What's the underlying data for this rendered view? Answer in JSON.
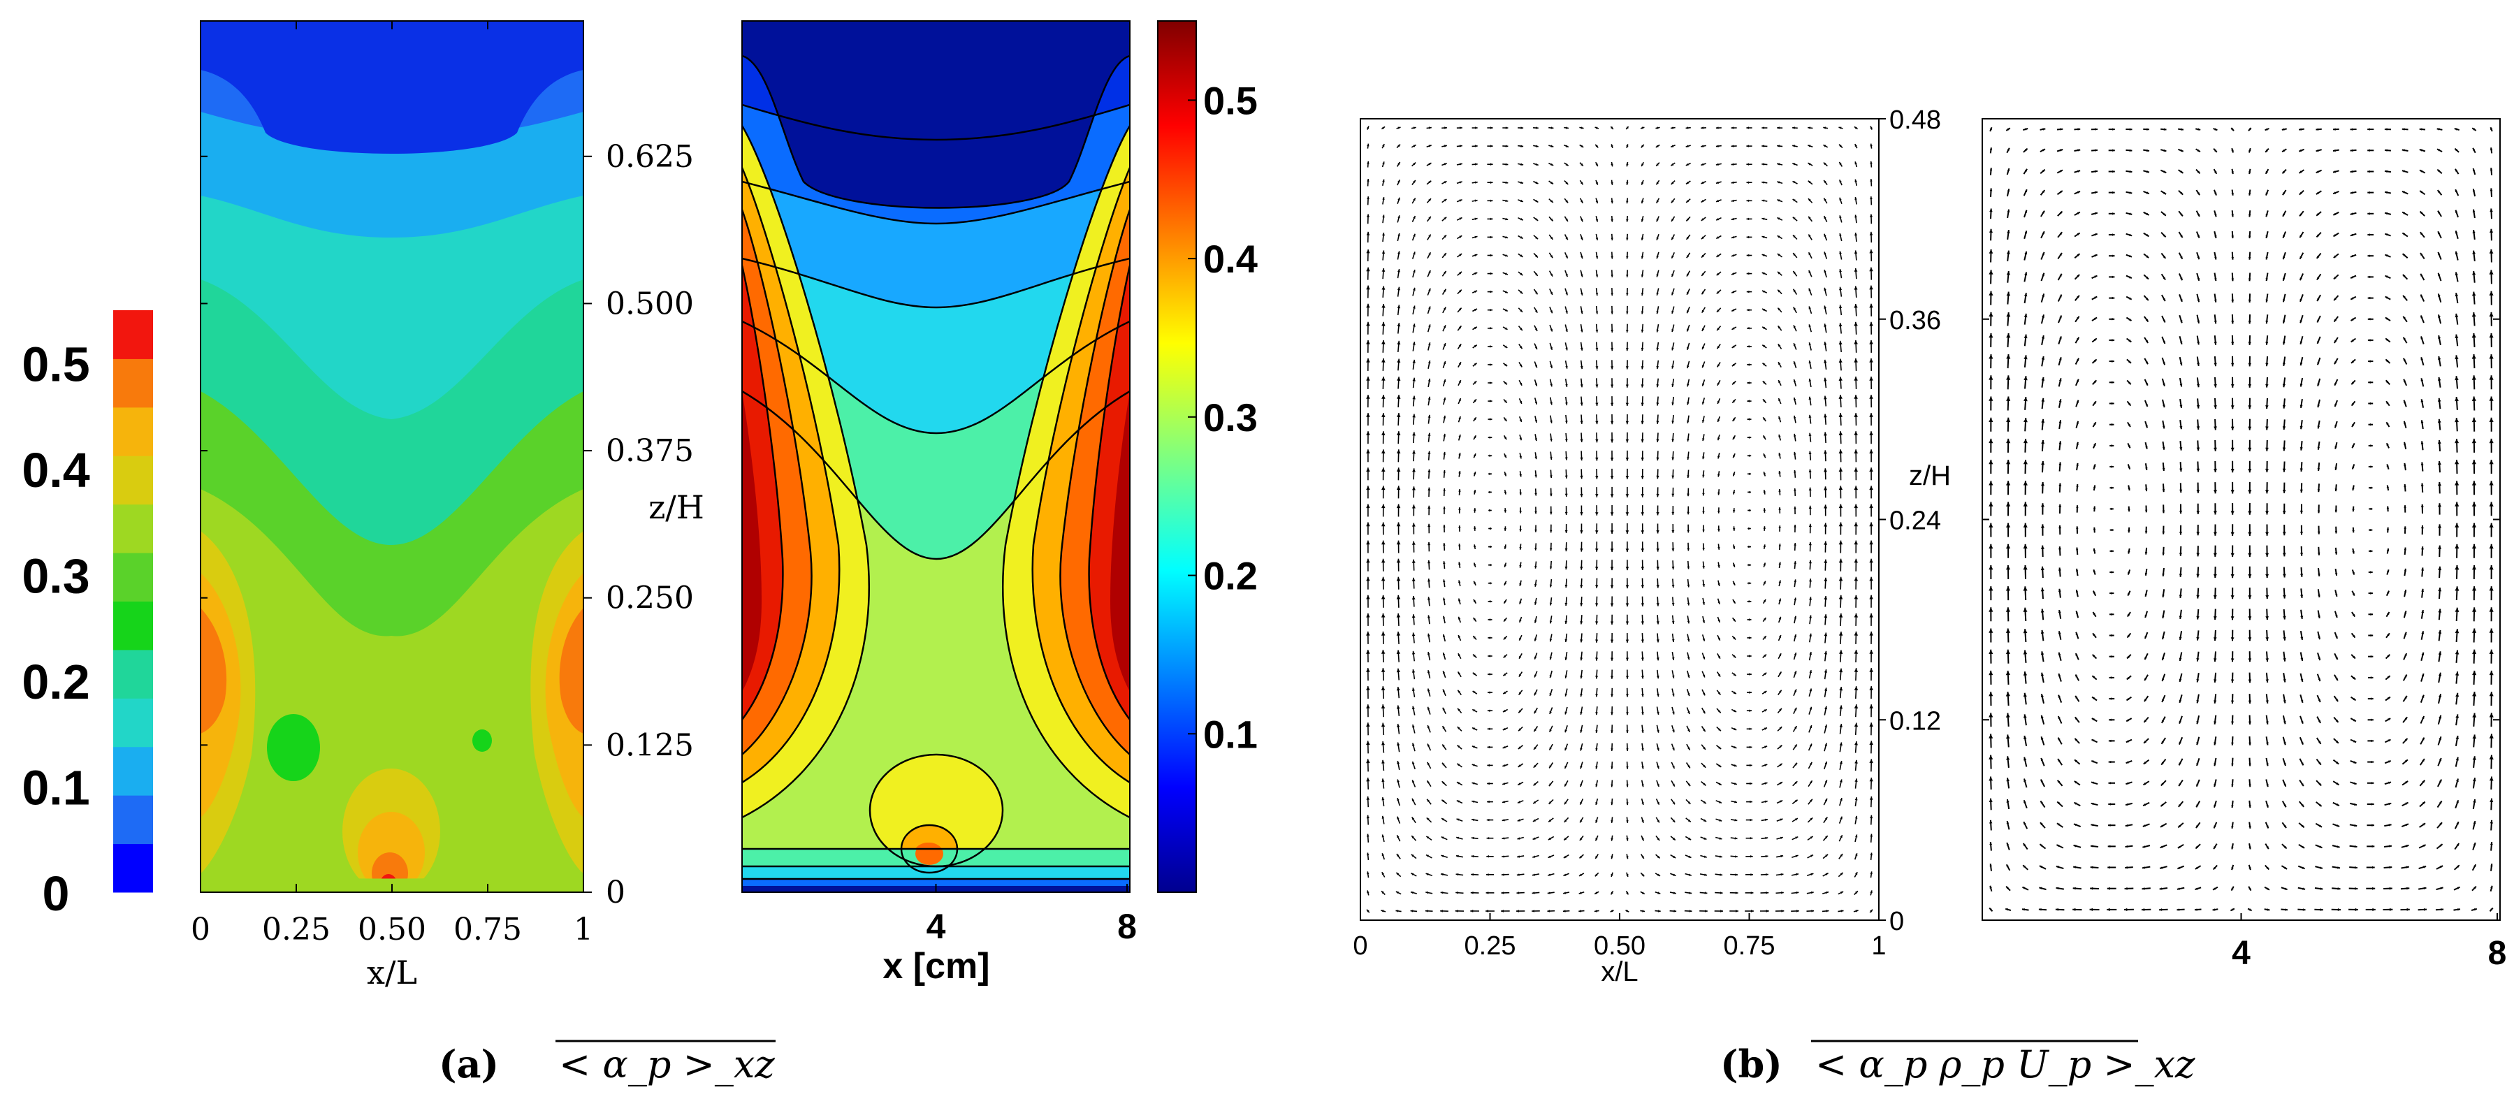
{
  "chart_data": [
    {
      "id": "a-left",
      "type": "heatmap",
      "title": "",
      "xlabel": "x/L",
      "ylabel": "z/H",
      "x_ticks": [
        "0",
        "0.25",
        "0.50",
        "0.75",
        "1"
      ],
      "x_values": [
        0,
        0.25,
        0.5,
        0.75,
        1
      ],
      "y_ticks": [
        "0",
        "0.125",
        "0.250",
        "0.375",
        "0.500",
        "0.625"
      ],
      "y_values": [
        0,
        0.125,
        0.25,
        0.375,
        0.5,
        0.625
      ],
      "xlim": [
        0,
        1
      ],
      "ylim": [
        0,
        0.74
      ],
      "colorbar": {
        "position": "left",
        "ticks": [
          "0",
          "0.1",
          "0.2",
          "0.3",
          "0.4",
          "0.5"
        ],
        "range": [
          0,
          0.55
        ],
        "levels": [
          0,
          0.05,
          0.1,
          0.15,
          0.2,
          0.25,
          0.3,
          0.35,
          0.4,
          0.45,
          0.5,
          0.55
        ],
        "colors": [
          "#0000ff",
          "#1e6bf5",
          "#1aaef0",
          "#22d6c8",
          "#20d69a",
          "#16d41a",
          "#5ad22a",
          "#9ed822",
          "#d9cc10",
          "#f6b40c",
          "#f87a0c",
          "#f2160e"
        ]
      },
      "description_value_range": [
        0,
        0.55
      ]
    },
    {
      "id": "a-right",
      "type": "heatmap",
      "xlabel": "x [cm]",
      "x_ticks": [
        "4",
        "8"
      ],
      "x_values": [
        4,
        8
      ],
      "xlim": [
        0,
        8
      ],
      "colorbar": {
        "position": "right",
        "ticks": [
          "0.1",
          "0.2",
          "0.3",
          "0.4",
          "0.5"
        ],
        "range": [
          0,
          0.55
        ]
      }
    },
    {
      "id": "b-left",
      "type": "vector-field",
      "xlabel": "x/L",
      "ylabel": "z/H",
      "x_ticks": [
        "0",
        "0.25",
        "0.50",
        "0.75",
        "1"
      ],
      "x_values": [
        0,
        0.25,
        0.5,
        0.75,
        1
      ],
      "y_ticks": [
        "0",
        "0.12",
        "0.24",
        "0.36",
        "0.48"
      ],
      "y_values": [
        0,
        0.12,
        0.24,
        0.36,
        0.48
      ],
      "xlim": [
        0,
        1
      ],
      "ylim": [
        0,
        0.48
      ]
    },
    {
      "id": "b-right",
      "type": "vector-field",
      "xlabel": "",
      "x_ticks": [
        "4",
        "8"
      ],
      "x_values": [
        4,
        8
      ],
      "xlim": [
        0,
        8
      ]
    }
  ],
  "captions": {
    "a": {
      "label": "(a)",
      "expr": "< α_p >_xz"
    },
    "b": {
      "label": "(b)",
      "expr": "< α_p ρ_p U_p >_xz"
    }
  }
}
